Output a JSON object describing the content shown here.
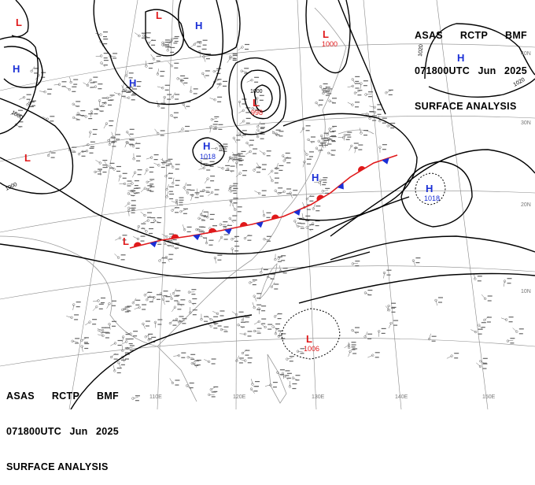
{
  "header_top_right": {
    "line1": [
      "ASAS",
      "RCTP",
      "BMF"
    ],
    "line2": [
      "071800UTC",
      "Jun",
      "2025"
    ],
    "line3": "SURFACE ANALYSIS"
  },
  "header_bottom_left": {
    "line1": [
      "ASAS",
      "RCTP",
      "BMF"
    ],
    "line2": [
      "071800UTC",
      "Jun",
      "2025"
    ],
    "line3": "SURFACE ANALYSIS"
  },
  "pressure_systems": [
    {
      "type": "H",
      "pressure": ""
    },
    {
      "type": "H",
      "pressure": ""
    },
    {
      "type": "H",
      "pressure": ""
    },
    {
      "type": "H",
      "pressure": "1018"
    },
    {
      "type": "H",
      "pressure": ""
    },
    {
      "type": "H",
      "pressure": "1018"
    },
    {
      "type": "L",
      "pressure": ""
    },
    {
      "type": "L",
      "pressure": ""
    },
    {
      "type": "L",
      "pressure": "1000"
    },
    {
      "type": "L",
      "pressure": "998"
    },
    {
      "type": "L",
      "pressure": ""
    },
    {
      "type": "L",
      "pressure": ""
    },
    {
      "type": "L",
      "pressure": "1006"
    },
    {
      "type": "H",
      "pressure": ""
    }
  ],
  "isobar_labels": [
    "1000",
    "1000",
    "1000",
    "1020",
    "1020"
  ],
  "grid_labels": {
    "longitudes": [
      "110E",
      "120E",
      "130E",
      "140E",
      "150E"
    ],
    "latitudes": [
      "40N",
      "30N",
      "20N",
      "10N"
    ]
  },
  "colors": {
    "high": "#1a2fd6",
    "low": "#e0191b",
    "isobar": "#000000",
    "grid": "#8a8a8a",
    "coast": "#9a9a9a"
  },
  "front": {
    "type": "stationary",
    "description": ""
  }
}
